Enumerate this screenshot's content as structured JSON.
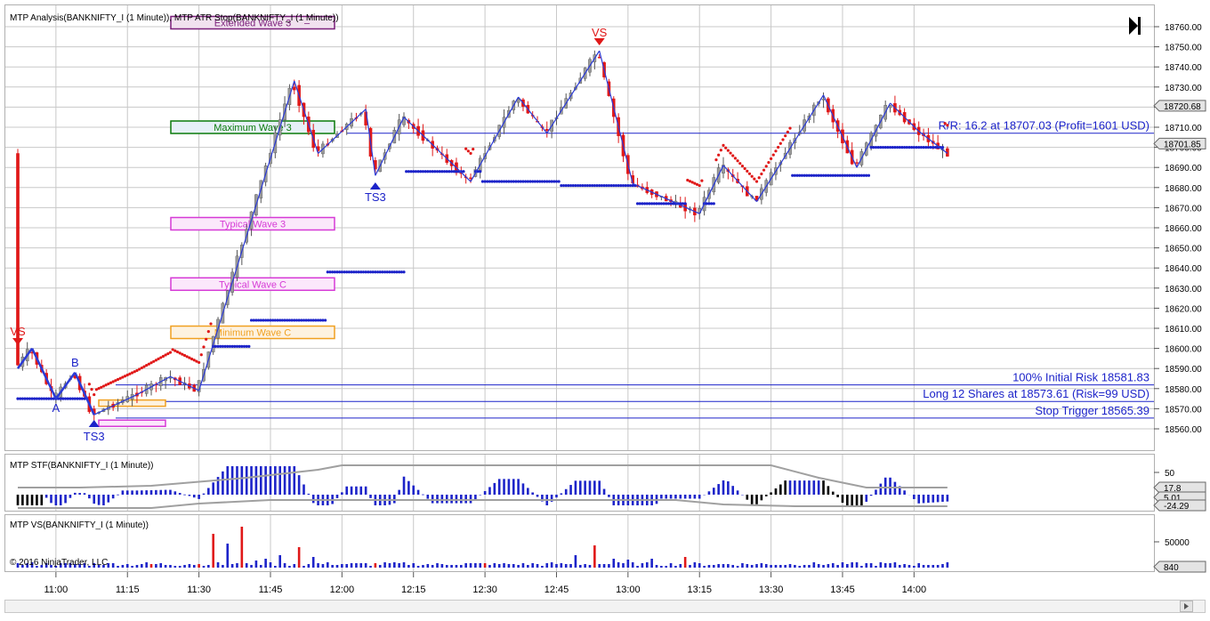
{
  "panels": {
    "price": {
      "title": "MTP Analysis(BANKNIFTY_I (1 Minute)), MTP ATR Stop(BANKNIFTY_I (1 Minute))",
      "y_ticks": [
        "18560.00",
        "18570.00",
        "18580.00",
        "18590.00",
        "18600.00",
        "18610.00",
        "18620.00",
        "18630.00",
        "18640.00",
        "18650.00",
        "18660.00",
        "18670.00",
        "18680.00",
        "18690.00",
        "18700.00",
        "18710.00",
        "18720.00",
        "18730.00",
        "18740.00",
        "18750.00",
        "18760.00"
      ],
      "price_tags": [
        {
          "text": "18720.68",
          "value": 18720.68
        },
        {
          "text": "18701.85",
          "value": 18701.85
        }
      ]
    },
    "stf": {
      "title": "MTP STF(BANKNIFTY_I (1 Minute))",
      "y_ticks": [
        "50"
      ],
      "tags": [
        "17.8",
        "5.01",
        "-24.29"
      ]
    },
    "vs": {
      "title": "MTP VS(BANKNIFTY_I (1 Minute))",
      "y_ticks": [
        "50000"
      ],
      "tags": [
        "840"
      ],
      "copyright": "© 2016 NinjaTrader, LLC"
    }
  },
  "x_axis": {
    "ticks": [
      "11:00",
      "11:15",
      "11:30",
      "11:45",
      "12:00",
      "12:15",
      "12:30",
      "12:45",
      "13:00",
      "13:15",
      "13:30",
      "13:45",
      "14:00"
    ]
  },
  "annotations": {
    "wave_boxes": [
      {
        "label": "Extended Wave 3",
        "suffix": "–",
        "color": "#7a1e7a",
        "fill": "#f1e1ef",
        "price": 18762
      },
      {
        "label": "Maximum Wave 3",
        "color": "#0a7a0a",
        "fill": "#e6f0f8",
        "price": 18710
      },
      {
        "label": "Typical Wave 3",
        "color": "#d63ad6",
        "fill": "#fbe8fb",
        "price": 18662
      },
      {
        "label": "Typical Wave C",
        "color": "#d63ad6",
        "fill": "#fbe8fb",
        "price": 18632
      },
      {
        "label": "Minimum Wave C",
        "color": "#f0a020",
        "fill": "#fdf2e0",
        "price": 18608
      }
    ],
    "labels": {
      "vs_left": "VS",
      "vs_top": "VS",
      "a": "A",
      "b": "B",
      "ts3_low": "TS3",
      "ts3_mid": "TS3"
    },
    "risk_lines": [
      {
        "text": "R/R: 16.2 at 18707.03 (Profit=1601 USD)",
        "value": 18707.03
      },
      {
        "text": "100% Initial Risk 18581.83",
        "value": 18581.83
      },
      {
        "text": "Long 12 Shares at 18573.61 (Risk=99 USD)",
        "value": 18573.61
      },
      {
        "text": "Stop Trigger 18565.39",
        "value": 18565.39
      }
    ]
  },
  "colors": {
    "zigzag": "#2a3ad6",
    "stop_dots": "#1c23c9",
    "trail_dots": "#e01818",
    "up_candle": "#9a9a9a",
    "down_candle": "#e01818",
    "histo": "#1c23c9"
  },
  "chart_data": {
    "type": "candlestick",
    "x_range": [
      "10:52",
      "14:13"
    ],
    "y_range": [
      18553,
      18766
    ],
    "zigzag": [
      [
        "10:52",
        18590
      ],
      [
        "10:55",
        18600
      ],
      [
        "11:00",
        18575
      ],
      [
        "11:04",
        18588
      ],
      [
        "11:08",
        18567
      ],
      [
        "11:17",
        18577
      ],
      [
        "11:24",
        18586
      ],
      [
        "11:30",
        18579
      ],
      [
        "11:50",
        18733
      ],
      [
        "11:55",
        18697
      ],
      [
        "12:05",
        18719
      ],
      [
        "12:07",
        18686
      ],
      [
        "12:13",
        18715
      ],
      [
        "12:27",
        18683
      ],
      [
        "12:37",
        18725
      ],
      [
        "12:43",
        18707
      ],
      [
        "12:54",
        18748
      ],
      [
        "13:01",
        18682
      ],
      [
        "13:15",
        18667
      ],
      [
        "13:20",
        18691
      ],
      [
        "13:27",
        18673
      ],
      [
        "13:41",
        18726
      ],
      [
        "13:48",
        18690
      ],
      [
        "13:55",
        18722
      ],
      [
        "14:01",
        18708
      ],
      [
        "14:07",
        18697
      ]
    ],
    "stops": [
      18575,
      18591,
      18601,
      18614,
      18638,
      18688,
      18683,
      18681,
      18672,
      18703,
      18686,
      18700
    ]
  }
}
